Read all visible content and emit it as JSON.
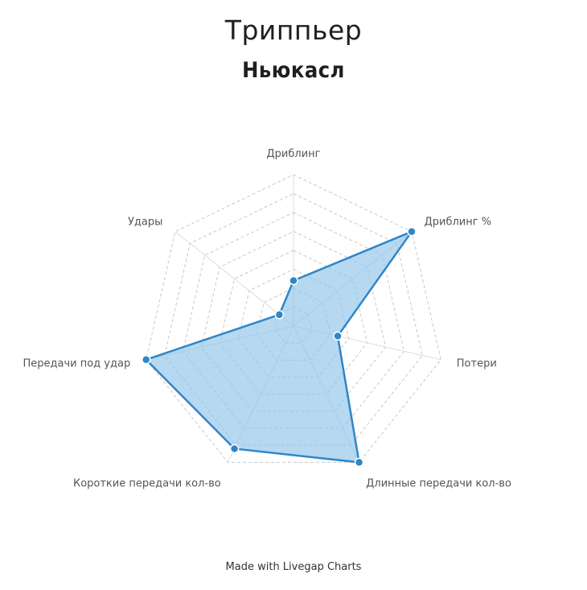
{
  "chart_data": {
    "type": "radar",
    "title": "Триппьер",
    "subtitle": "Ньюкасл",
    "axes": [
      "Дриблинг",
      "Дриблинг %",
      "Потери",
      "Длинные передачи кол-во",
      "Короткие передачи кол-во",
      "Передачи под удар",
      "Удары"
    ],
    "values": [
      0.3,
      1.0,
      0.3,
      1.0,
      0.9,
      1.0,
      0.12
    ],
    "range": [
      0,
      1
    ],
    "grid_levels": 8,
    "colors": {
      "line": "#2f86c8",
      "fill": "#8fc3ea",
      "grid": "#c8c8c8"
    },
    "footer": "Made with Livegap Charts"
  }
}
